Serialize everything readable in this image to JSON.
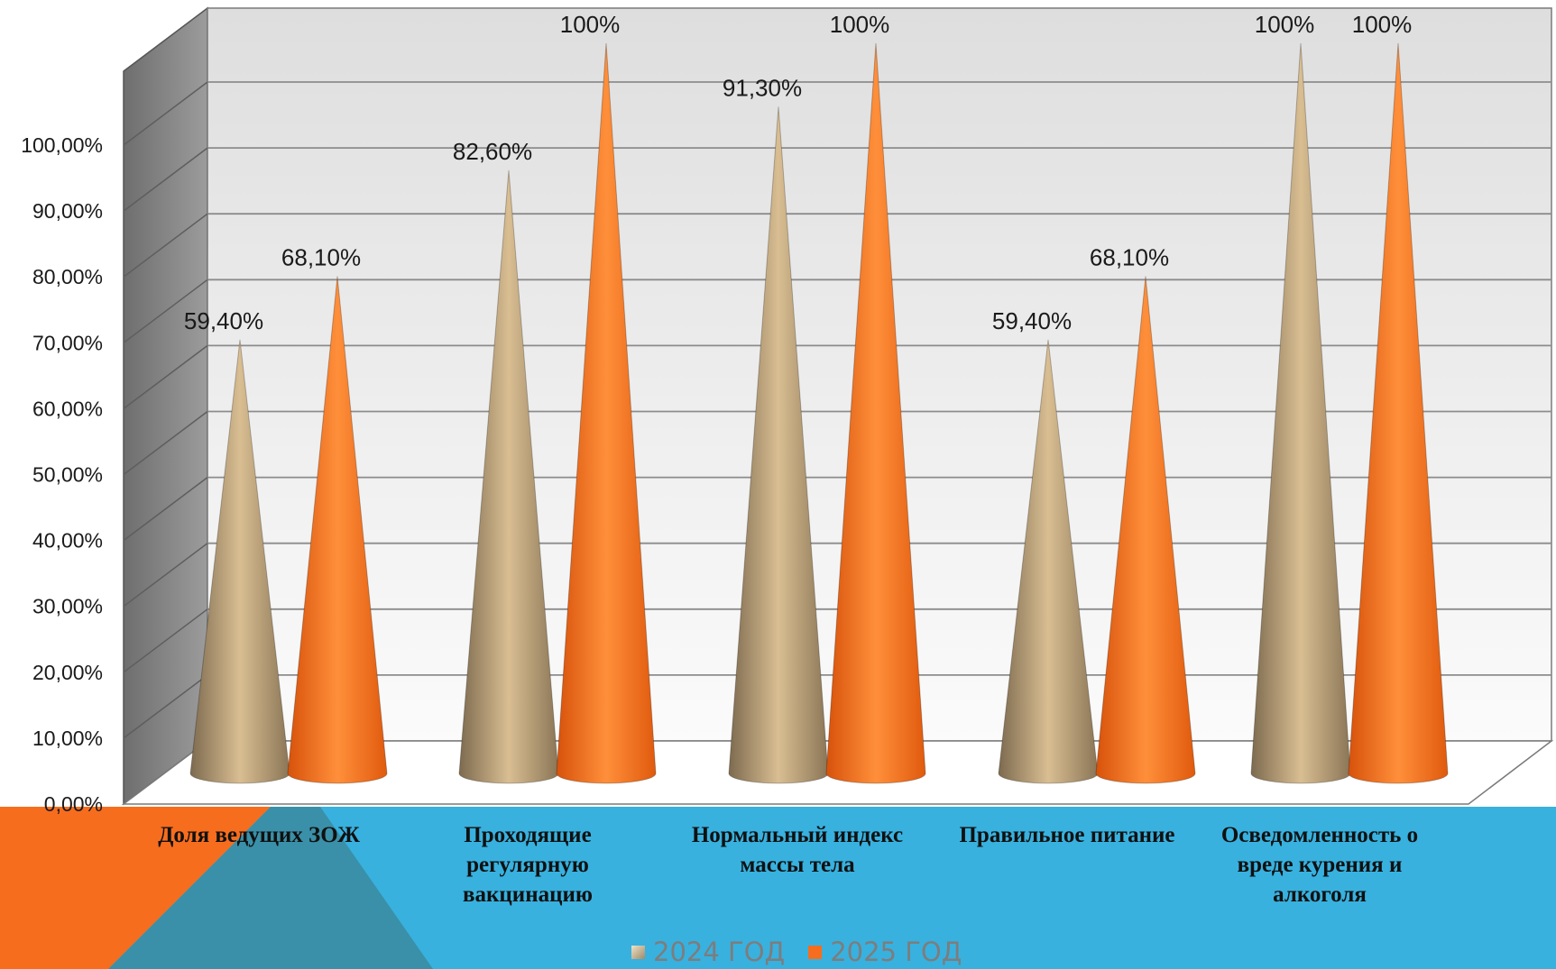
{
  "chart_data": {
    "type": "bar",
    "bar_shape": "cone",
    "categories": [
      "Доля  ведущих ЗОЖ",
      "Проходящие регулярную вакцинацию",
      "Нормальный индекс массы тела",
      "Правильное питание",
      "Осведомленность о вреде курения и алкоголя"
    ],
    "series": [
      {
        "name": "2024 ГОД",
        "color": "#c8ad85",
        "values": [
          59.4,
          82.6,
          91.3,
          59.4,
          100
        ],
        "labels": [
          "59,40%",
          "82,60%",
          "91,30%",
          "59,40%",
          "100%"
        ]
      },
      {
        "name": "2025 ГОД",
        "color": "#f77a1e",
        "values": [
          68.1,
          100,
          100,
          68.1,
          100
        ],
        "labels": [
          "68,10%",
          "100%",
          "100%",
          "68,10%",
          "100%"
        ]
      }
    ],
    "ylim": [
      0,
      100
    ],
    "yticks": [
      "0,00%",
      "10,00%",
      "20,00%",
      "30,00%",
      "40,00%",
      "50,00%",
      "60,00%",
      "70,00%",
      "80,00%",
      "90,00%",
      "100,00%"
    ],
    "grid": true,
    "legend_position": "bottom"
  }
}
